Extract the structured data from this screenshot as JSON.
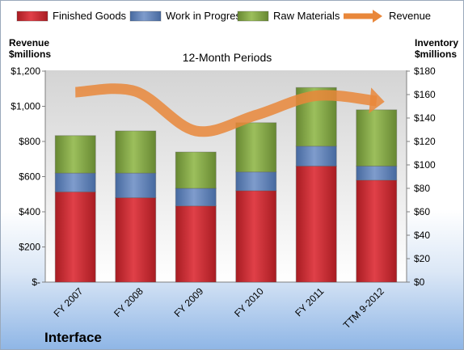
{
  "chart_data": {
    "type": "bar",
    "title": "12-Month Periods",
    "company": "Interface",
    "categories": [
      "FY 2007",
      "FY 2008",
      "FY 2009",
      "FY 2010",
      "FY 2011",
      "TTM 9-2012"
    ],
    "series": [
      {
        "name": "Finished Goods",
        "axis": "right",
        "color": "#c0262d",
        "values": [
          77,
          72,
          65,
          78,
          99,
          87
        ]
      },
      {
        "name": "Work in Progress",
        "axis": "right",
        "color": "#5b7db6",
        "values": [
          16,
          21,
          15,
          16,
          17,
          12
        ]
      },
      {
        "name": "Raw Materials",
        "axis": "right",
        "color": "#7ea340",
        "values": [
          32,
          36,
          31,
          42,
          50,
          48
        ]
      },
      {
        "name": "Revenue",
        "axis": "left",
        "type": "line",
        "color": "#e9873a",
        "values": [
          1080,
          1085,
          860,
          950,
          1060,
          1030
        ]
      }
    ],
    "stacked": true,
    "left_axis": {
      "label_line1": "Revenue",
      "label_line2": "$millions",
      "ylim": [
        0,
        1200
      ],
      "ticks": [
        "$-",
        "$200",
        "$400",
        "$600",
        "$800",
        "$1,000",
        "$1,200"
      ]
    },
    "right_axis": {
      "label_line1": "Inventory",
      "label_line2": "$millions",
      "ylim": [
        0,
        180
      ],
      "ticks": [
        "$0",
        "$20",
        "$40",
        "$60",
        "$80",
        "$100",
        "$120",
        "$140",
        "$160",
        "$180"
      ]
    },
    "legend_position": "top",
    "grid": false
  }
}
